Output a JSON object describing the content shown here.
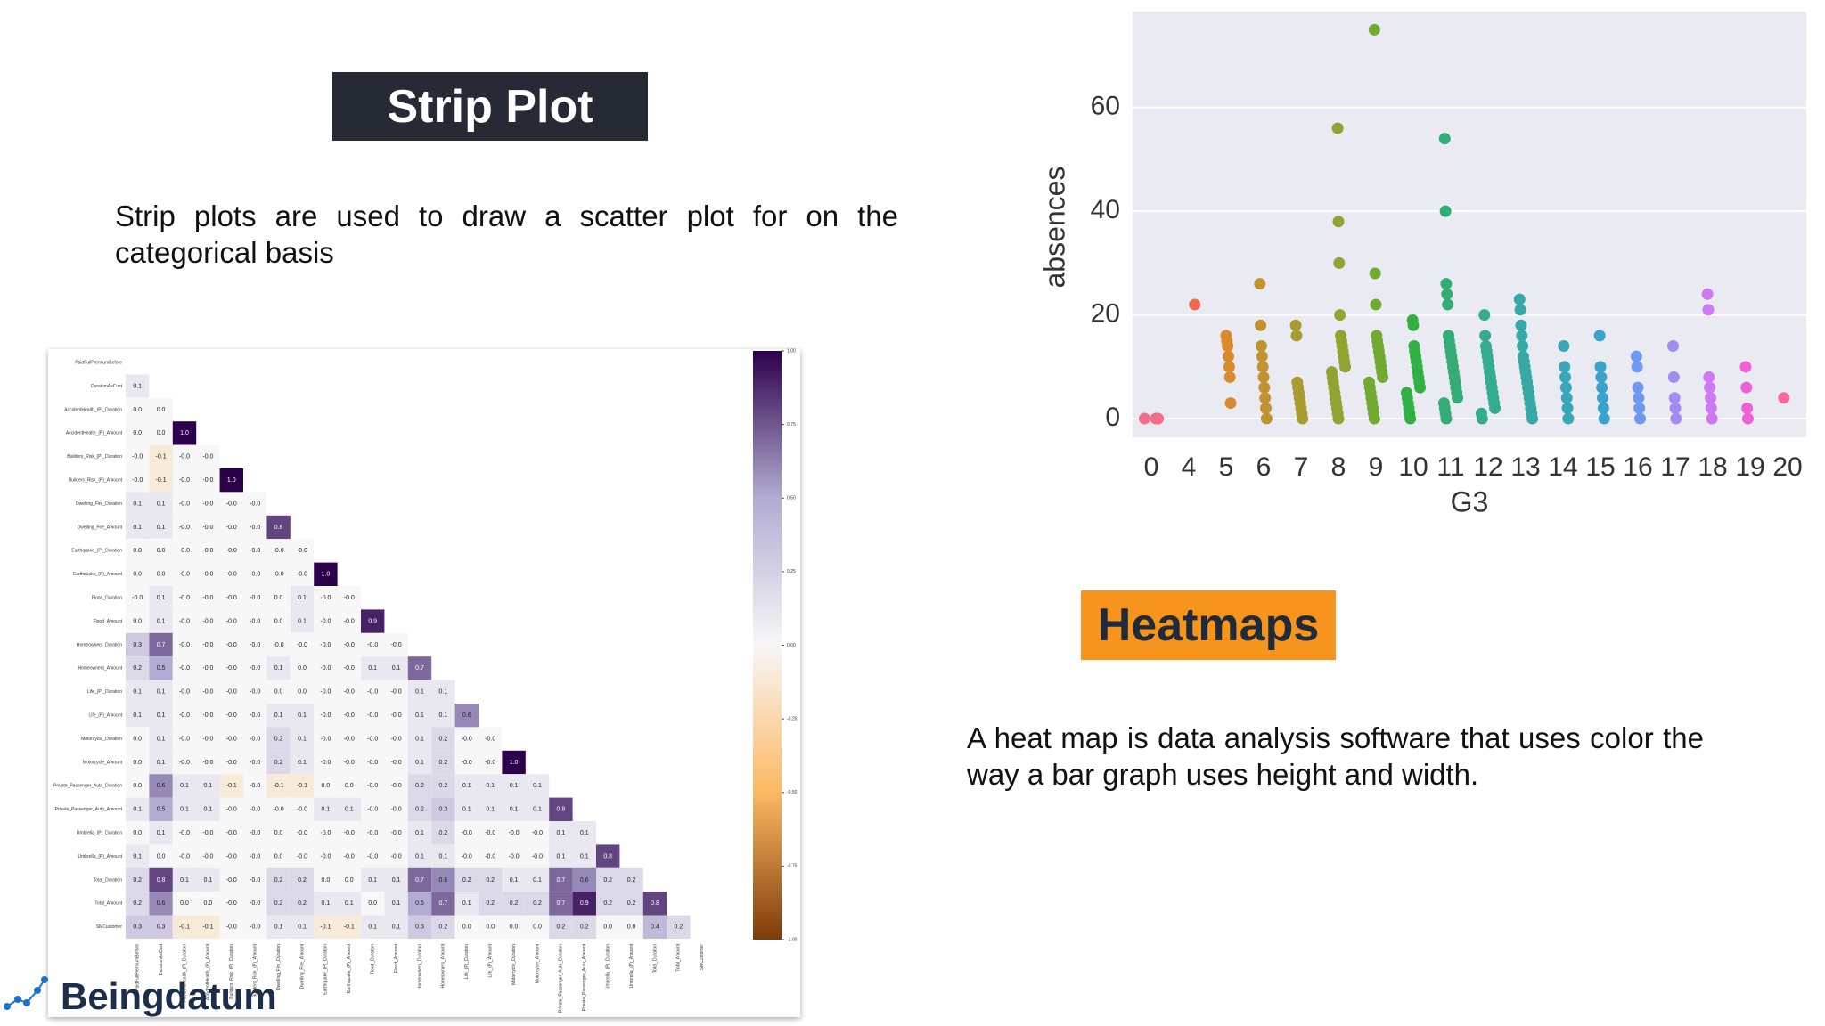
{
  "strip_plot_badge": "Strip Plot",
  "strip_plot_text": "Strip plots are used to draw a scatter plot for on the categorical basis",
  "heatmap_badge": "Heatmaps",
  "heatmap_text": "A heat map is data analysis software that uses color the way a bar graph uses height and width.",
  "logo": "Beingdatum",
  "chart_data": [
    {
      "type": "heatmap",
      "labels": [
        "PaidFullPremiumBefore",
        "DurationAsCust",
        "AccidentHealth_(P)_Duration",
        "AccidentHealth_(P)_Amount",
        "Builders_Risk_(P)_Duration",
        "Builders_Risk_(P)_Amount",
        "Dwelling_Fire_Duration",
        "Dwelling_Fire_Amount",
        "Earthquake_(P)_Duration",
        "Earthquake_(P)_Amount",
        "Flood_Duration",
        "Flood_Amount",
        "Homeowners_Duration",
        "Homeowners_Amount",
        "Life_(P)_Duration",
        "Life_(P)_Amount",
        "Motorcycle_Duration",
        "Motorcycle_Amount",
        "Private_Passenger_Auto_Duration",
        "Private_Passenger_Auto_Amount",
        "Umbrella_(P)_Duration",
        "Umbrella_(P)_Amount",
        "Total_Duration",
        "Total_Amount",
        "SMCustomer"
      ],
      "values": [
        [],
        [
          0.1
        ],
        [
          0.0,
          0.0
        ],
        [
          0.0,
          0.0,
          1.0
        ],
        [
          -0.0,
          -0.1,
          -0.0,
          -0.0
        ],
        [
          -0.0,
          -0.1,
          -0.0,
          -0.0,
          1.0
        ],
        [
          0.1,
          0.1,
          -0.0,
          -0.0,
          -0.0,
          -0.0
        ],
        [
          0.1,
          0.1,
          -0.0,
          -0.0,
          -0.0,
          -0.0,
          0.8
        ],
        [
          0.0,
          0.0,
          -0.0,
          -0.0,
          -0.0,
          -0.0,
          -0.0,
          -0.0
        ],
        [
          0.0,
          0.0,
          -0.0,
          -0.0,
          -0.0,
          -0.0,
          -0.0,
          -0.0,
          1.0
        ],
        [
          -0.0,
          0.1,
          -0.0,
          -0.0,
          -0.0,
          -0.0,
          0.0,
          0.1,
          -0.0,
          -0.0
        ],
        [
          0.0,
          0.1,
          -0.0,
          -0.0,
          -0.0,
          -0.0,
          0.0,
          0.1,
          -0.0,
          -0.0,
          0.9
        ],
        [
          0.3,
          0.7,
          -0.0,
          -0.0,
          -0.0,
          -0.0,
          -0.0,
          -0.0,
          -0.0,
          -0.0,
          -0.0,
          -0.0
        ],
        [
          0.2,
          0.5,
          -0.0,
          -0.0,
          -0.0,
          -0.0,
          0.1,
          0.0,
          -0.0,
          -0.0,
          0.1,
          0.1,
          0.7
        ],
        [
          0.1,
          0.1,
          -0.0,
          -0.0,
          -0.0,
          -0.0,
          0.0,
          0.0,
          -0.0,
          -0.0,
          -0.0,
          -0.0,
          0.1,
          0.1
        ],
        [
          0.1,
          0.1,
          -0.0,
          -0.0,
          -0.0,
          -0.0,
          0.1,
          0.1,
          -0.0,
          -0.0,
          -0.0,
          -0.0,
          0.1,
          0.1,
          0.6
        ],
        [
          0.0,
          0.1,
          -0.0,
          -0.0,
          -0.0,
          -0.0,
          0.2,
          0.1,
          -0.0,
          -0.0,
          -0.0,
          -0.0,
          0.1,
          0.2,
          -0.0,
          -0.0
        ],
        [
          0.0,
          0.1,
          -0.0,
          -0.0,
          -0.0,
          -0.0,
          0.2,
          0.1,
          -0.0,
          -0.0,
          -0.0,
          -0.0,
          0.1,
          0.2,
          -0.0,
          -0.0,
          1.0
        ],
        [
          0.0,
          0.6,
          0.1,
          0.1,
          -0.1,
          -0.0,
          -0.1,
          -0.1,
          0.0,
          0.0,
          -0.0,
          -0.0,
          0.2,
          0.2,
          0.1,
          0.1,
          0.1,
          0.1
        ],
        [
          0.1,
          0.5,
          0.1,
          0.1,
          -0.0,
          -0.0,
          -0.0,
          -0.0,
          0.1,
          0.1,
          -0.0,
          -0.0,
          0.2,
          0.3,
          0.1,
          0.1,
          0.1,
          0.1,
          0.8
        ],
        [
          0.0,
          0.1,
          -0.0,
          -0.0,
          -0.0,
          -0.0,
          0.0,
          -0.0,
          -0.0,
          -0.0,
          -0.0,
          -0.0,
          0.1,
          0.2,
          -0.0,
          -0.0,
          -0.0,
          -0.0,
          0.1,
          0.1
        ],
        [
          0.1,
          0.0,
          -0.0,
          -0.0,
          -0.0,
          -0.0,
          0.0,
          -0.0,
          -0.0,
          -0.0,
          -0.0,
          -0.0,
          0.1,
          0.1,
          -0.0,
          -0.0,
          -0.0,
          -0.0,
          0.1,
          0.1,
          0.8
        ],
        [
          0.2,
          0.8,
          0.1,
          0.1,
          -0.0,
          -0.0,
          0.2,
          0.2,
          0.0,
          0.0,
          0.1,
          0.1,
          0.7,
          0.6,
          0.2,
          0.2,
          0.1,
          0.1,
          0.7,
          0.6,
          0.2,
          0.2
        ],
        [
          0.2,
          0.6,
          0.0,
          0.0,
          -0.0,
          -0.0,
          0.2,
          0.2,
          0.1,
          0.1,
          0.0,
          0.1,
          0.5,
          0.7,
          0.1,
          0.2,
          0.2,
          0.2,
          0.7,
          0.9,
          0.2,
          0.2,
          0.8
        ],
        [
          0.3,
          0.3,
          -0.1,
          -0.1,
          -0.0,
          -0.0,
          0.1,
          0.1,
          -0.1,
          -0.1,
          0.1,
          0.1,
          0.3,
          0.2,
          0.0,
          0.0,
          0.0,
          0.0,
          0.2,
          0.2,
          0.0,
          0.0,
          0.4,
          0.2
        ]
      ],
      "value_labels": [
        [],
        [
          "0.1"
        ],
        [
          "0.0",
          "0.0"
        ],
        [
          "0.0",
          "0.0",
          "1.0"
        ],
        [
          "-0.0",
          "-0.1",
          "-0.0",
          "-0.0"
        ],
        [
          "-0.0",
          "-0.1",
          "-0.0",
          "-0.0",
          "1.0"
        ],
        [
          "0.1",
          "0.1",
          "-0.0",
          "-0.0",
          "-0.0",
          "-0.0"
        ],
        [
          "0.1",
          "0.1",
          "-0.0",
          "-0.0",
          "-0.0",
          "-0.0",
          "0.8"
        ],
        [
          "0.0",
          "0.0",
          "-0.0",
          "-0.0",
          "-0.0",
          "-0.0",
          "-0.0",
          "-0.0"
        ],
        [
          "0.0",
          "0.0",
          "-0.0",
          "-0.0",
          "-0.0",
          "-0.0",
          "-0.0",
          "-0.0",
          "1.0"
        ],
        [
          "-0.0",
          "0.1",
          "-0.0",
          "-0.0",
          "-0.0",
          "-0.0",
          "0.0",
          "0.1",
          "-0.0",
          "-0.0"
        ],
        [
          "0.0",
          "0.1",
          "-0.0",
          "-0.0",
          "-0.0",
          "-0.0",
          "0.0",
          "0.1",
          "-0.0",
          "-0.0",
          "0.9"
        ],
        [
          "0.3",
          "0.7",
          "-0.0",
          "-0.0",
          "-0.0",
          "-0.0",
          "-0.0",
          "-0.0",
          "-0.0",
          "-0.0",
          "-0.0",
          "-0.0"
        ],
        [
          "0.2",
          "0.5",
          "-0.0",
          "-0.0",
          "-0.0",
          "-0.0",
          "0.1",
          "0.0",
          "-0.0",
          "-0.0",
          "0.1",
          "0.1",
          "0.7"
        ],
        [
          "0.1",
          "0.1",
          "-0.0",
          "-0.0",
          "-0.0",
          "-0.0",
          "0.0",
          "0.0",
          "-0.0",
          "-0.0",
          "-0.0",
          "-0.0",
          "0.1",
          "0.1"
        ],
        [
          "0.1",
          "0.1",
          "-0.0",
          "-0.0",
          "-0.0",
          "-0.0",
          "0.1",
          "0.1",
          "-0.0",
          "-0.0",
          "-0.0",
          "-0.0",
          "0.1",
          "0.1",
          "0.6"
        ],
        [
          "0.0",
          "0.1",
          "-0.0",
          "-0.0",
          "-0.0",
          "-0.0",
          "0.2",
          "0.1",
          "-0.0",
          "-0.0",
          "-0.0",
          "-0.0",
          "0.1",
          "0.2",
          "-0.0",
          "-0.0"
        ],
        [
          "0.0",
          "0.1",
          "-0.0",
          "-0.0",
          "-0.0",
          "-0.0",
          "0.2",
          "0.1",
          "-0.0",
          "-0.0",
          "-0.0",
          "-0.0",
          "0.1",
          "0.2",
          "-0.0",
          "-0.0",
          "1.0"
        ],
        [
          "0.0",
          "0.6",
          "0.1",
          "0.1",
          "-0.1",
          "-0.0",
          "-0.1",
          "-0.1",
          "0.0",
          "0.0",
          "-0.0",
          "-0.0",
          "0.2",
          "0.2",
          "0.1",
          "0.1",
          "0.1",
          "0.1"
        ],
        [
          "0.1",
          "0.5",
          "0.1",
          "0.1",
          "-0.0",
          "-0.0",
          "-0.0",
          "-0.0",
          "0.1",
          "0.1",
          "-0.0",
          "-0.0",
          "0.2",
          "0.3",
          "0.1",
          "0.1",
          "0.1",
          "0.1",
          "0.8"
        ],
        [
          "0.0",
          "0.1",
          "-0.0",
          "-0.0",
          "-0.0",
          "-0.0",
          "0.0",
          "-0.0",
          "-0.0",
          "-0.0",
          "-0.0",
          "-0.0",
          "0.1",
          "0.2",
          "-0.0",
          "-0.0",
          "-0.0",
          "-0.0",
          "0.1",
          "0.1"
        ],
        [
          "0.1",
          "0.0",
          "-0.0",
          "-0.0",
          "-0.0",
          "-0.0",
          "0.0",
          "-0.0",
          "-0.0",
          "-0.0",
          "-0.0",
          "-0.0",
          "0.1",
          "0.1",
          "-0.0",
          "-0.0",
          "-0.0",
          "-0.0",
          "0.1",
          "0.1",
          "0.8"
        ],
        [
          "0.2",
          "0.8",
          "0.1",
          "0.1",
          "-0.0",
          "-0.0",
          "0.2",
          "0.2",
          "0.0",
          "0.0",
          "0.1",
          "0.1",
          "0.7",
          "0.6",
          "0.2",
          "0.2",
          "0.1",
          "0.1",
          "0.7",
          "0.6",
          "0.2",
          "0.2"
        ],
        [
          "0.2",
          "0.6",
          "0.0",
          "0.0",
          "-0.0",
          "-0.0",
          "0.2",
          "0.2",
          "0.1",
          "0.1",
          "0.0",
          "0.1",
          "0.5",
          "0.7",
          "0.1",
          "0.2",
          "0.2",
          "0.2",
          "0.7",
          "0.9",
          "0.2",
          "0.2",
          "0.8"
        ],
        [
          "0.3",
          "0.3",
          "-0.1",
          "-0.1",
          "-0.0",
          "-0.0",
          "0.1",
          "0.1",
          "-0.1",
          "-0.1",
          "0.1",
          "0.1",
          "0.3",
          "0.2",
          "0.0",
          "0.0",
          "0.0",
          "0.0",
          "0.2",
          "0.2",
          "0.0",
          "0.0",
          "0.4",
          "0.2"
        ]
      ],
      "colorscale": [
        "#7f3b08",
        "#fdb863",
        "#f7f7f7",
        "#b2abd2",
        "#2d004b"
      ],
      "clim": [
        -1,
        1
      ],
      "cticks": [
        {
          "value": 1,
          "label": "1.00"
        },
        {
          "value": 0.75,
          "label": "0.75"
        },
        {
          "value": 0.5,
          "label": "0.50"
        },
        {
          "value": 0.25,
          "label": "0.25"
        },
        {
          "value": 0,
          "label": "0.00"
        },
        {
          "value": -0.25,
          "label": "-0.25"
        },
        {
          "value": -0.5,
          "label": "-0.50"
        },
        {
          "value": -0.75,
          "label": "-0.75"
        },
        {
          "value": -1,
          "label": "-1.00"
        }
      ]
    },
    {
      "type": "strip",
      "xlabel": "G3",
      "ylabel": "absences",
      "categories": [
        "0",
        "4",
        "5",
        "6",
        "7",
        "8",
        "9",
        "10",
        "11",
        "12",
        "13",
        "14",
        "15",
        "16",
        "17",
        "18",
        "19",
        "20"
      ],
      "colors": [
        "#f66d8a",
        "#f2684f",
        "#d98a2c",
        "#c09330",
        "#a89c30",
        "#93a331",
        "#72aa31",
        "#31b046",
        "#33ad75",
        "#35ab8f",
        "#36a9a4",
        "#38a7b7",
        "#3ba2cc",
        "#6f98f2",
        "#a28cf2",
        "#cc79f2",
        "#f35fd4",
        "#f56aa6"
      ],
      "values": [
        [
          0,
          0,
          0,
          0,
          0
        ],
        [
          22
        ],
        [
          3,
          8,
          10,
          12,
          14,
          15,
          16
        ],
        [
          0,
          2,
          4,
          6,
          8,
          10,
          12,
          14,
          18,
          26
        ],
        [
          0,
          1,
          2,
          3,
          4,
          5,
          6,
          7,
          16,
          18
        ],
        [
          0,
          1,
          2,
          3,
          4,
          5,
          6,
          7,
          8,
          9,
          10,
          11,
          12,
          13,
          14,
          15,
          16,
          20,
          30,
          38,
          56
        ],
        [
          0,
          1,
          2,
          3,
          4,
          5,
          6,
          7,
          8,
          9,
          10,
          11,
          12,
          13,
          14,
          15,
          16,
          22,
          28,
          75
        ],
        [
          0,
          1,
          2,
          3,
          4,
          5,
          6,
          7,
          8,
          9,
          10,
          11,
          12,
          13,
          14,
          18,
          19
        ],
        [
          0,
          1,
          2,
          3,
          4,
          5,
          6,
          7,
          8,
          9,
          10,
          11,
          12,
          13,
          14,
          15,
          16,
          22,
          24,
          26,
          40,
          54
        ],
        [
          0,
          1,
          2,
          3,
          4,
          5,
          6,
          7,
          8,
          9,
          10,
          11,
          12,
          13,
          14,
          16,
          20
        ],
        [
          0,
          1,
          2,
          3,
          4,
          5,
          6,
          7,
          8,
          9,
          10,
          11,
          12,
          14,
          16,
          18,
          21,
          23
        ],
        [
          0,
          2,
          4,
          6,
          8,
          10,
          14
        ],
        [
          0,
          2,
          4,
          6,
          8,
          10,
          16
        ],
        [
          0,
          2,
          4,
          6,
          10,
          12
        ],
        [
          0,
          2,
          4,
          8,
          14
        ],
        [
          0,
          2,
          4,
          6,
          8,
          21,
          24
        ],
        [
          0,
          2,
          6,
          10
        ],
        [
          4
        ]
      ],
      "ylim": [
        -3.6,
        78.5
      ],
      "yticks": [
        0,
        20,
        40,
        60
      ],
      "grid": true
    }
  ]
}
